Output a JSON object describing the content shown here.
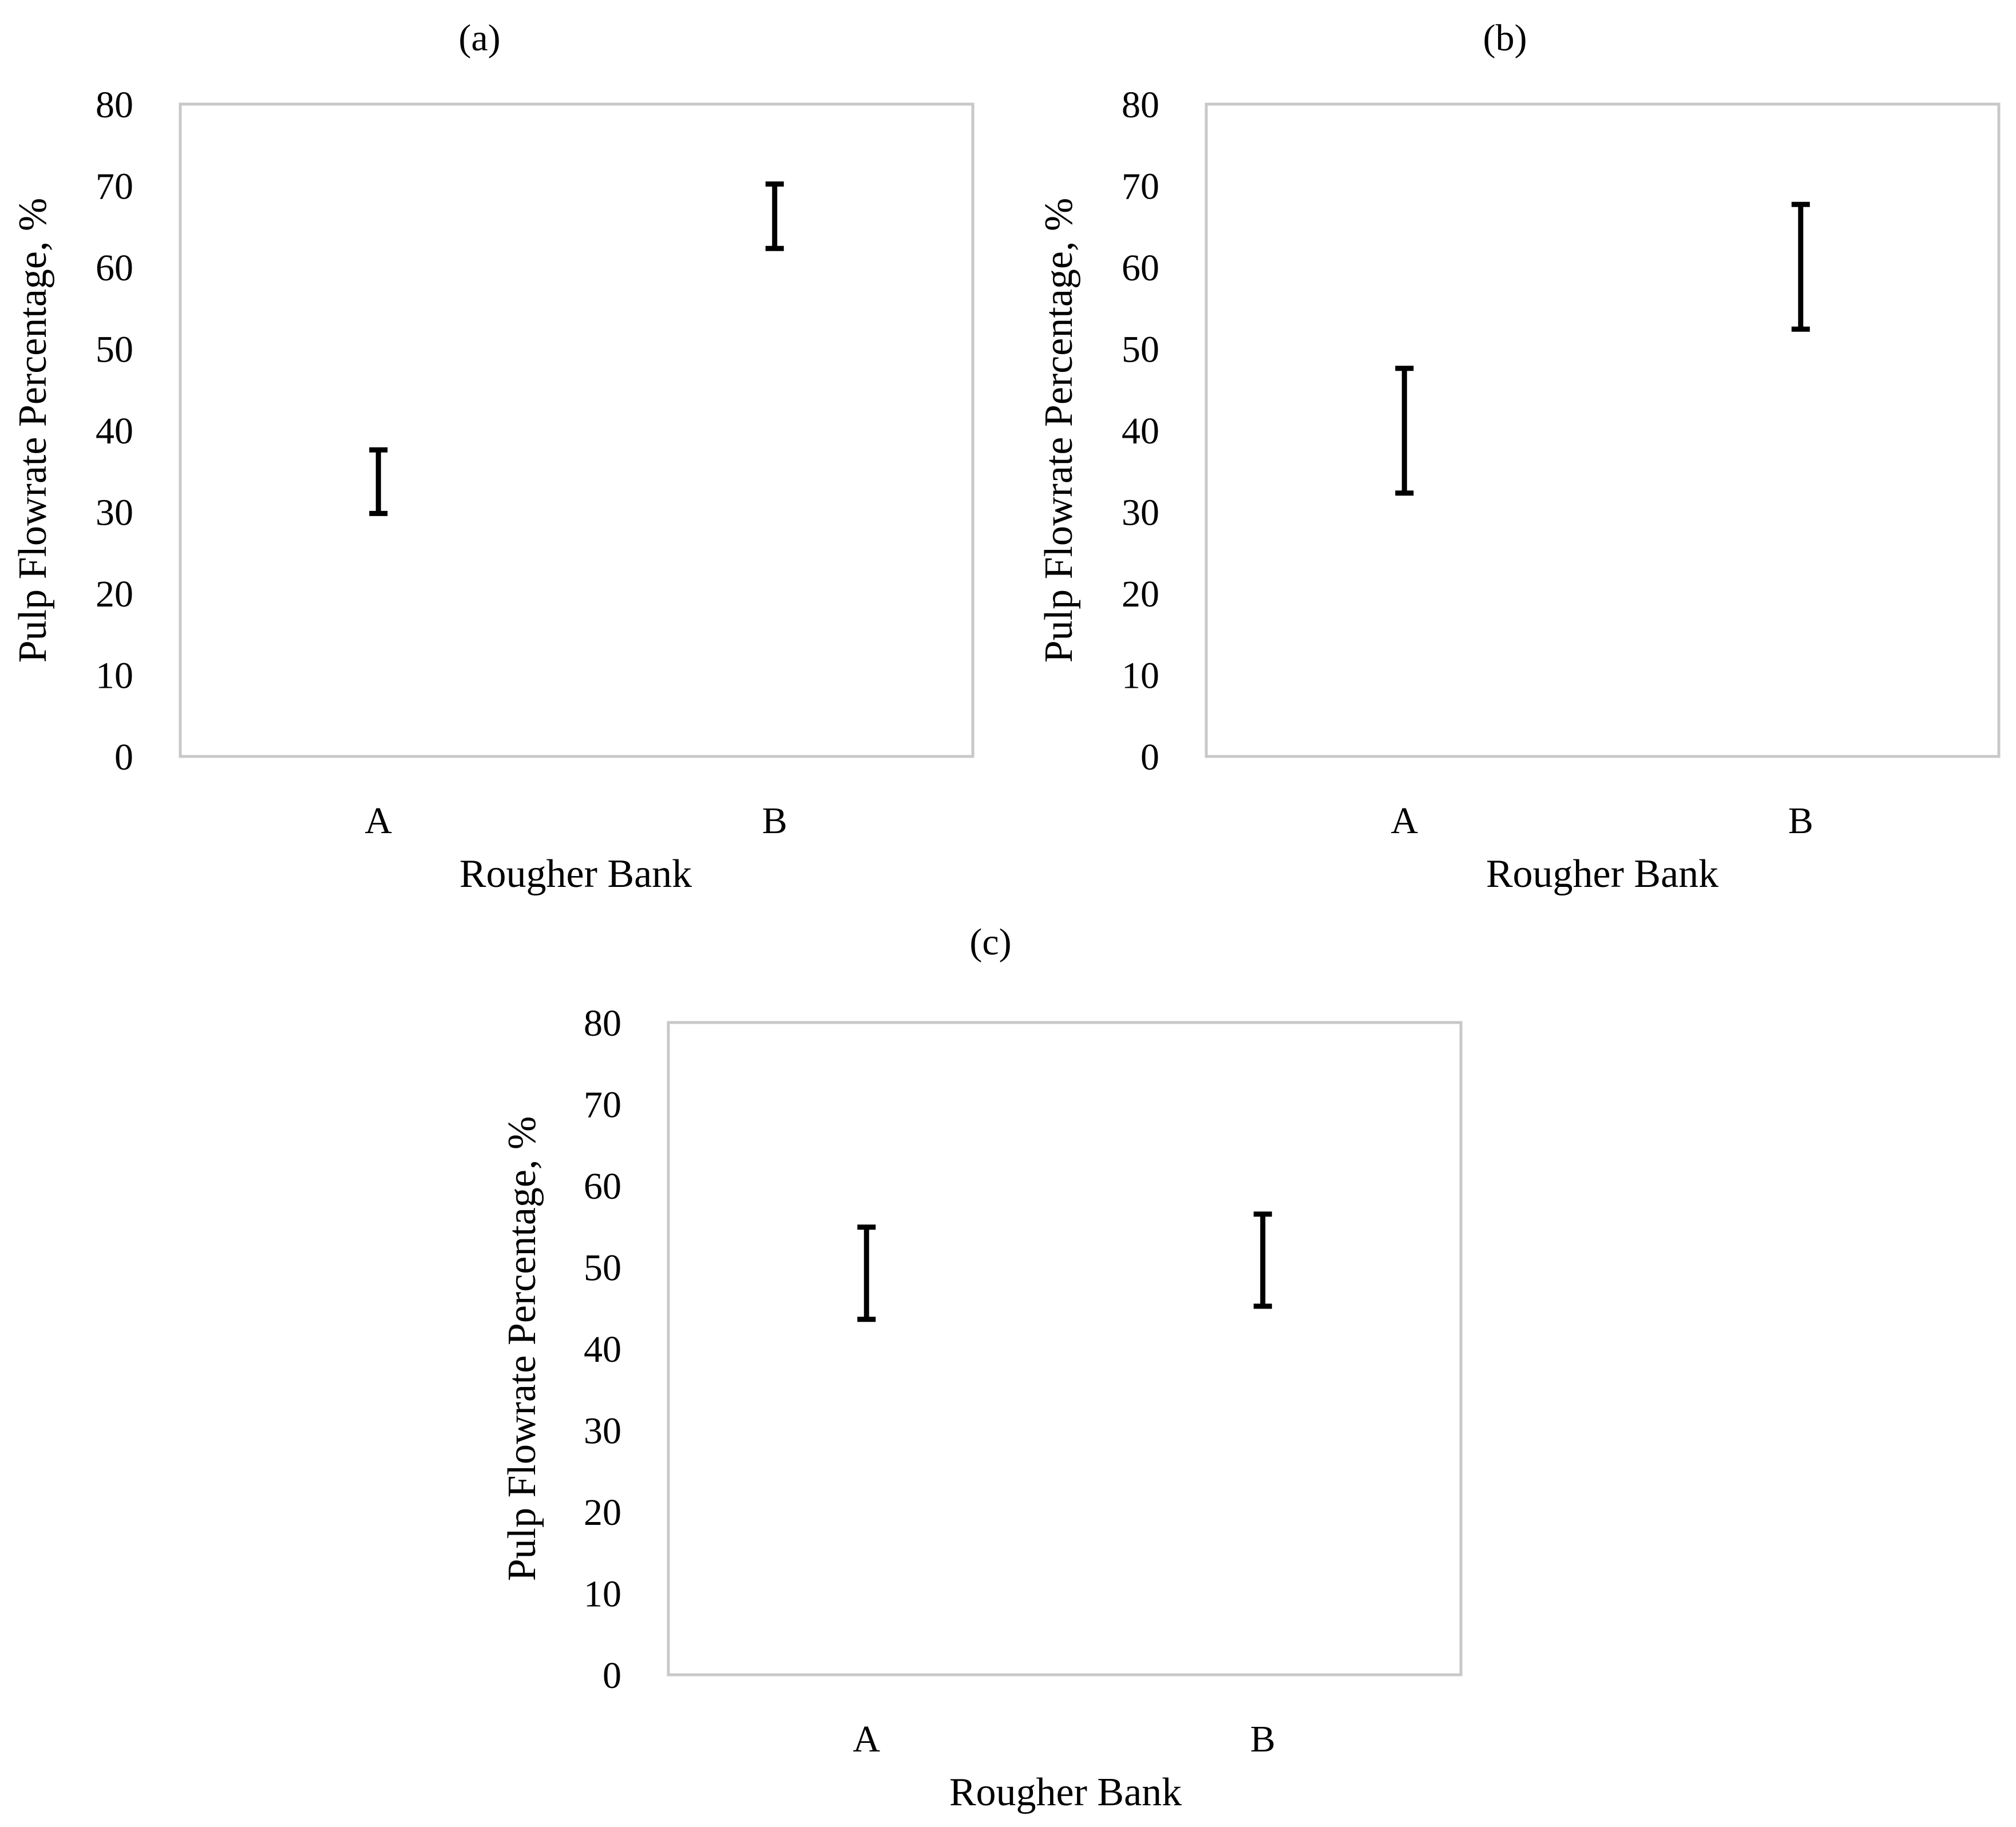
{
  "chart_data": [
    {
      "type": "errorbar",
      "panel_label": "(a)",
      "categories": [
        "A",
        "B"
      ],
      "series": [
        {
          "low": [
            29.8,
            62.3
          ],
          "high": [
            37.6,
            70.2
          ]
        }
      ],
      "ylabel": "Pulp Flowrate Percentage, %",
      "xlabel": "Rougher Bank",
      "ylim": [
        0,
        80
      ],
      "yticks": [
        0,
        10,
        20,
        30,
        40,
        50,
        60,
        70,
        80
      ],
      "grid": false
    },
    {
      "type": "errorbar",
      "panel_label": "(b)",
      "categories": [
        "A",
        "B"
      ],
      "series": [
        {
          "low": [
            32.3,
            52.4
          ],
          "high": [
            47.6,
            67.7
          ]
        }
      ],
      "ylabel": "Pulp Flowrate Percentage, %",
      "xlabel": "Rougher Bank",
      "ylim": [
        0,
        80
      ],
      "yticks": [
        0,
        10,
        20,
        30,
        40,
        50,
        60,
        70,
        80
      ],
      "grid": false
    },
    {
      "type": "errorbar",
      "panel_label": "(c)",
      "categories": [
        "A",
        "B"
      ],
      "series": [
        {
          "low": [
            43.6,
            45.2
          ],
          "high": [
            54.9,
            56.5
          ]
        }
      ],
      "ylabel": "Pulp Flowrate Percentage, %",
      "xlabel": "Rougher Bank",
      "ylim": [
        0,
        80
      ],
      "yticks": [
        0,
        10,
        20,
        30,
        40,
        50,
        60,
        70,
        80
      ],
      "grid": false
    }
  ]
}
